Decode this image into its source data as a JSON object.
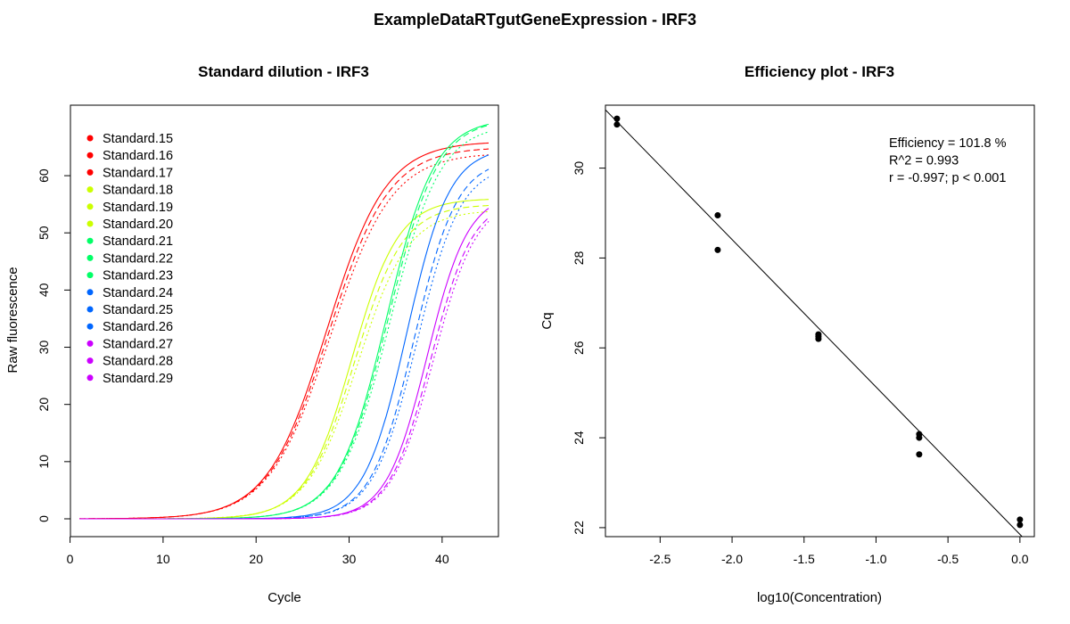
{
  "main_title": "ExampleDataRTgutGeneExpression - IRF3",
  "chart_data": [
    {
      "type": "line",
      "title": "Standard dilution - IRF3",
      "xlabel": "Cycle",
      "ylabel": "Raw fluorescence",
      "xlim": [
        1,
        45
      ],
      "ylim": [
        0,
        65
      ],
      "xticks": [
        0,
        10,
        20,
        30,
        40
      ],
      "yticks": [
        0,
        10,
        20,
        30,
        40,
        50,
        60
      ],
      "legend_position": "top-left",
      "series": [
        {
          "name": "Standard.15",
          "color": "#ff0000",
          "c": 27.6,
          "k": 3.2,
          "max": 66,
          "dash": "none"
        },
        {
          "name": "Standard.16",
          "color": "#ff0000",
          "c": 27.8,
          "k": 3.25,
          "max": 65,
          "dash": "7,4"
        },
        {
          "name": "Standard.17",
          "color": "#ff0000",
          "c": 28.0,
          "k": 3.3,
          "max": 64,
          "dash": "2,3"
        },
        {
          "name": "Standard.18",
          "color": "#ccff00",
          "c": 30.3,
          "k": 2.5,
          "max": 56,
          "dash": "none"
        },
        {
          "name": "Standard.19",
          "color": "#ccff00",
          "c": 30.6,
          "k": 2.6,
          "max": 55,
          "dash": "7,4"
        },
        {
          "name": "Standard.20",
          "color": "#ccff00",
          "c": 30.9,
          "k": 2.7,
          "max": 54,
          "dash": "2,3"
        },
        {
          "name": "Standard.21",
          "color": "#00ff66",
          "c": 34.0,
          "k": 2.6,
          "max": 70,
          "dash": "none"
        },
        {
          "name": "Standard.22",
          "color": "#00ff66",
          "c": 34.2,
          "k": 2.65,
          "max": 70,
          "dash": "7,4"
        },
        {
          "name": "Standard.23",
          "color": "#00ff66",
          "c": 34.4,
          "k": 2.7,
          "max": 69,
          "dash": "2,3"
        },
        {
          "name": "Standard.24",
          "color": "#0066ff",
          "c": 36.2,
          "k": 2.3,
          "max": 65,
          "dash": "none"
        },
        {
          "name": "Standard.25",
          "color": "#0066ff",
          "c": 37.0,
          "k": 2.3,
          "max": 63,
          "dash": "7,4"
        },
        {
          "name": "Standard.26",
          "color": "#0066ff",
          "c": 37.3,
          "k": 2.35,
          "max": 62,
          "dash": "2,3"
        },
        {
          "name": "Standard.27",
          "color": "#cc00ff",
          "c": 38.4,
          "k": 2.2,
          "max": 57,
          "dash": "none"
        },
        {
          "name": "Standard.28",
          "color": "#cc00ff",
          "c": 38.8,
          "k": 2.25,
          "max": 56,
          "dash": "7,4"
        },
        {
          "name": "Standard.29",
          "color": "#cc00ff",
          "c": 39.1,
          "k": 2.3,
          "max": 56,
          "dash": "2,3"
        }
      ]
    },
    {
      "type": "scatter",
      "title": "Efficiency plot - IRF3",
      "xlabel": "log10(Concentration)",
      "ylabel": "Cq",
      "xlim": [
        -2.88,
        0.1
      ],
      "ylim": [
        21.8,
        31.4
      ],
      "xticks": [
        -2.5,
        -2.0,
        -1.5,
        -1.0,
        -0.5,
        0.0
      ],
      "xtick_labels": [
        "-2.5",
        "-2.0",
        "-1.5",
        "-1.0",
        "-0.5",
        "0.0"
      ],
      "yticks": [
        22,
        24,
        26,
        28,
        30
      ],
      "points": [
        {
          "x": -2.8,
          "y": 31.1
        },
        {
          "x": -2.8,
          "y": 30.97
        },
        {
          "x": -2.1,
          "y": 28.95
        },
        {
          "x": -2.1,
          "y": 28.18
        },
        {
          "x": -1.4,
          "y": 26.3
        },
        {
          "x": -1.4,
          "y": 26.25
        },
        {
          "x": -1.4,
          "y": 26.2
        },
        {
          "x": -0.7,
          "y": 24.08
        },
        {
          "x": -0.7,
          "y": 24.0
        },
        {
          "x": -0.7,
          "y": 23.63
        },
        {
          "x": 0.0,
          "y": 22.18
        },
        {
          "x": 0.0,
          "y": 22.06
        }
      ],
      "fit": {
        "slope": -3.28,
        "intercept": 21.85
      },
      "annotations": [
        "Efficiency = 101.8 %",
        "R^2 = 0.993",
        "r = -0.997; p < 0.001"
      ]
    }
  ]
}
